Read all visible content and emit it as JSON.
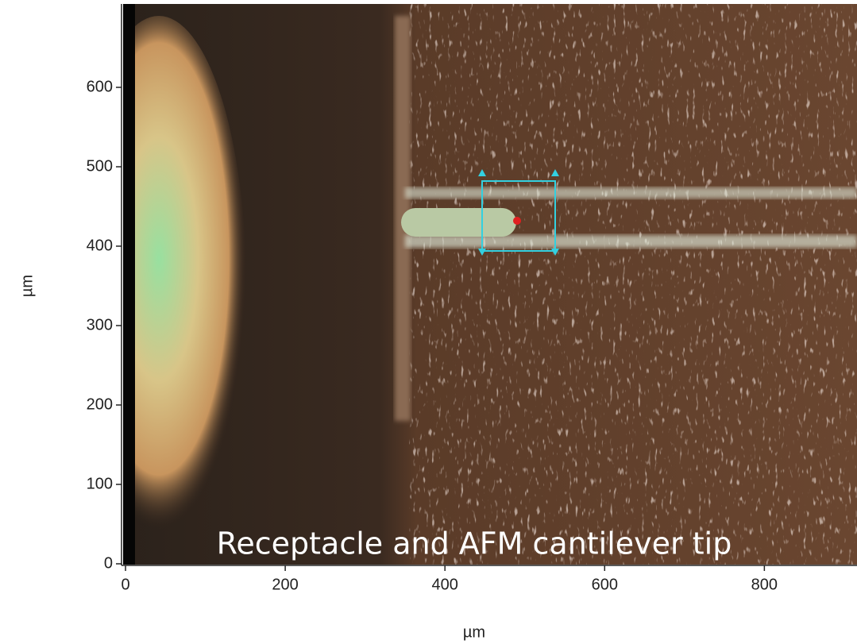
{
  "chart_data": {
    "type": "image",
    "annotation": "Receptacle and AFM cantilever tip",
    "x_label": "µm",
    "y_label": "µm",
    "xlim": [
      -5,
      916
    ],
    "ylim": [
      -2,
      705
    ],
    "xticks": [
      0,
      200,
      400,
      600,
      800
    ],
    "yticks": [
      0,
      100,
      200,
      300,
      400,
      500,
      600
    ]
  }
}
